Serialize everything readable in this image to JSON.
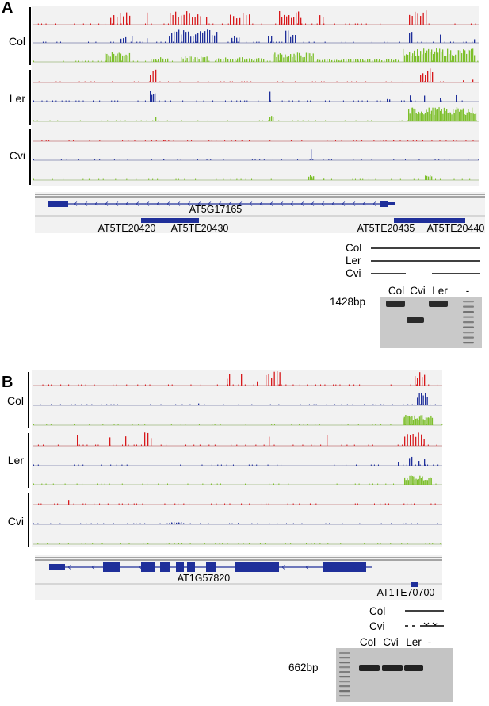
{
  "panels": [
    {
      "letter": "A",
      "samples": [
        "Col",
        "Ler",
        "Cvi"
      ],
      "gene": "AT5G17165",
      "transposons": [
        "AT5TE20420",
        "AT5TE20430",
        "AT5TE20435",
        "AT5TE20440"
      ],
      "deletion_legend": [
        "Col",
        "Ler",
        "Cvi"
      ],
      "gel": {
        "lanes": [
          "Col",
          "Cvi",
          "Ler",
          "-"
        ],
        "band_size": "1428bp"
      },
      "track_colors": [
        "#d7191c",
        "#1f2f9a",
        "#7cbf2a"
      ]
    },
    {
      "letter": "B",
      "samples": [
        "Col",
        "Ler",
        "Cvi"
      ],
      "gene": "AT1G57820",
      "transposons": [
        "AT1TE70700"
      ],
      "deletion_legend": [
        "Col",
        "Cvi"
      ],
      "gel": {
        "lanes": [
          "Col",
          "Cvi",
          "Ler",
          "-"
        ],
        "band_size": "662bp"
      },
      "track_colors": [
        "#d7191c",
        "#1f2f9a",
        "#7cbf2a"
      ]
    }
  ]
}
